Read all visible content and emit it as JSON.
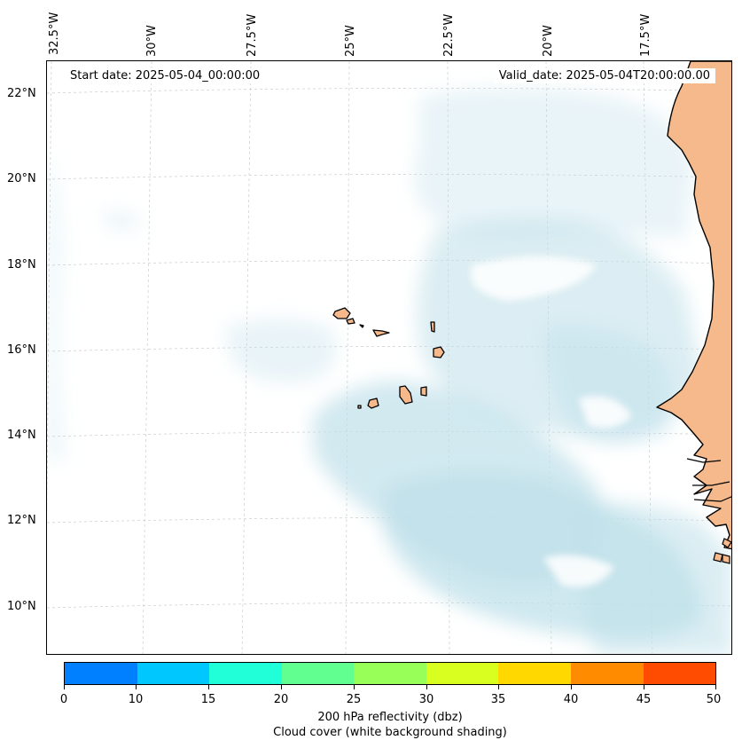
{
  "map": {
    "start_date": "Start date: 2025-05-04_00:00:00",
    "valid_date": "Valid_date: 2025-05-04T20:00:00.00",
    "longitude_labels": [
      "32.5°W",
      "30°W",
      "27.5°W",
      "25°W",
      "22.5°W",
      "20°W",
      "17.5°W"
    ],
    "latitude_labels": [
      "22°N",
      "20°N",
      "18°N",
      "16°N",
      "14°N",
      "12°N",
      "10°N"
    ],
    "colors": {
      "cloud": "#bfe0ea",
      "land": "#f6b98c",
      "coast": "#000000"
    }
  },
  "colorbar": {
    "ticks": [
      "0",
      "10",
      "15",
      "20",
      "25",
      "30",
      "35",
      "40",
      "45",
      "50"
    ],
    "colors": [
      "#0080ff",
      "#00c8ff",
      "#20ffd8",
      "#60ff90",
      "#98ff58",
      "#d8ff20",
      "#ffd800",
      "#ff8c00",
      "#ff4c00"
    ],
    "label": "200 hPa reflectivity (dbz)",
    "sublabel": "Cloud cover (white background shading)"
  }
}
